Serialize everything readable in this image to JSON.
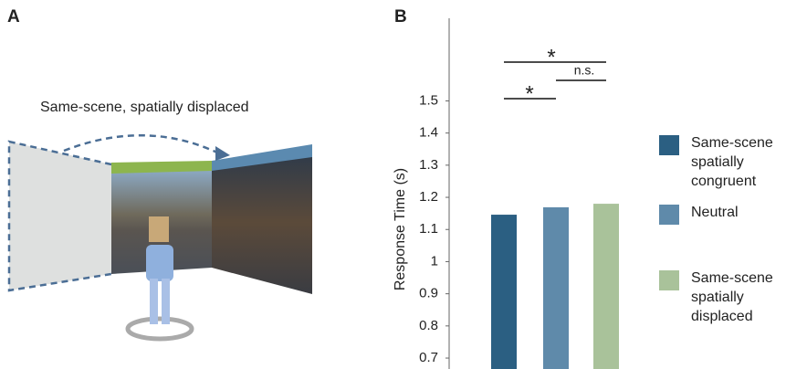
{
  "panel_labels": [
    "A",
    "B"
  ],
  "panel_a": {
    "caption": "Same-scene, spatially displaced"
  },
  "chart_data": {
    "type": "bar",
    "ylabel": "Response Time (s)",
    "legend": [
      "Same-scene spatially congruent",
      "Neutral",
      "Same-scene spatially displaced"
    ],
    "values": [
      1.146,
      1.169,
      1.18
    ],
    "colors": [
      "#2b5f82",
      "#5f8aaa",
      "#a9c29a"
    ],
    "ylim": [
      0.666,
      1.757
    ],
    "yticks": [
      0.7,
      0.8,
      0.9,
      1,
      1.1,
      1.2,
      1.3,
      1.4,
      1.5
    ],
    "annotations": [
      {
        "text": "*"
      },
      {
        "text": "n.s."
      },
      {
        "text": "*"
      }
    ]
  }
}
